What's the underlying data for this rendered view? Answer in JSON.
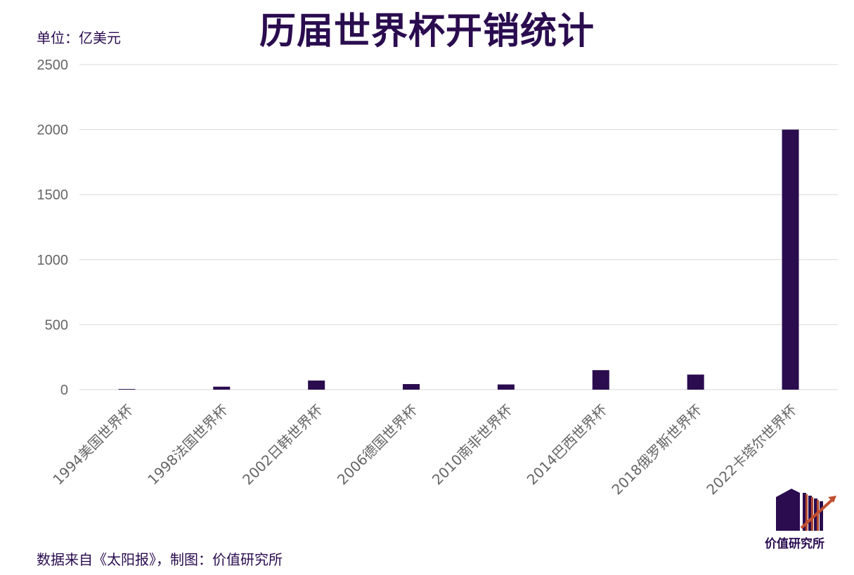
{
  "chart_data": {
    "type": "bar",
    "title": "历届世界杯开销统计",
    "unit_label": "单位：亿美元",
    "categories": [
      "1994美国世界杯",
      "1998法国世界杯",
      "2002日韩世界杯",
      "2006德国世界杯",
      "2010南非世界杯",
      "2014巴西世界杯",
      "2018俄罗斯世界杯",
      "2022卡塔尔世界杯"
    ],
    "values": [
      5,
      23,
      70,
      43,
      40,
      150,
      116,
      2000
    ],
    "ylim": [
      0,
      2500
    ],
    "yticks": [
      "0",
      "500",
      "1000",
      "1500",
      "2000",
      "2500"
    ],
    "grid": true,
    "bar_color": "#2a0c4f"
  },
  "footer": {
    "source": "数据来自《太阳报》，制图：价值研究所"
  },
  "logo": {
    "text": "价值研究所",
    "icon": "building-chart-icon"
  }
}
